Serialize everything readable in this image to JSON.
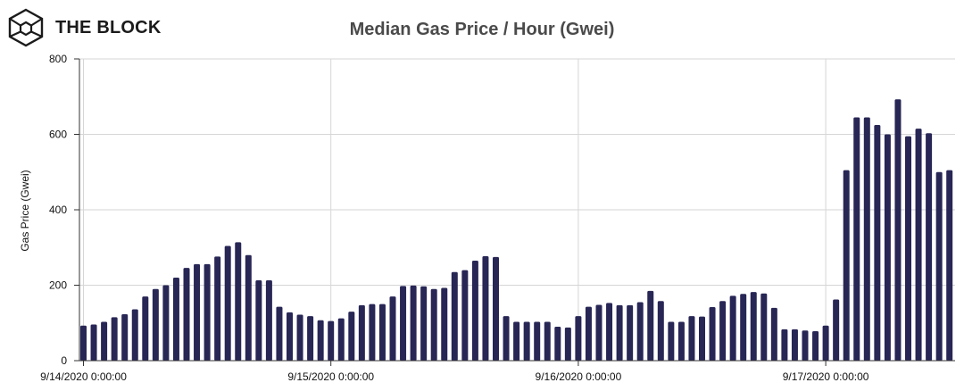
{
  "brand": {
    "name": "THE BLOCK",
    "icon": "block-cube-icon"
  },
  "chart_data": {
    "type": "bar",
    "title": "Median Gas Price / Hour (Gwei)",
    "xlabel": "",
    "ylabel": "Gas Price (Gwei)",
    "ylim": [
      0,
      800
    ],
    "yticks": [
      0,
      200,
      400,
      600,
      800
    ],
    "grid": true,
    "x_tick_labels": [
      {
        "label": "9/14/2020 0:00:00",
        "index": 0
      },
      {
        "label": "9/15/2020 0:00:00",
        "index": 24
      },
      {
        "label": "9/16/2020 0:00:00",
        "index": 48
      },
      {
        "label": "9/17/2020 0:00:00",
        "index": 72
      }
    ],
    "colors": {
      "bar": "#272655",
      "grid": "#d6d6d6",
      "axis": "#333333"
    },
    "series": [
      {
        "values": [
          93,
          96,
          103,
          115,
          123,
          136,
          170,
          190,
          200,
          220,
          246,
          256,
          256,
          276,
          304,
          314,
          280,
          213,
          213,
          143,
          128,
          122,
          118,
          107,
          105,
          112,
          130,
          147,
          150,
          150,
          170,
          198,
          199,
          197,
          190,
          193,
          235,
          240,
          265,
          277,
          275,
          118,
          103,
          103,
          103,
          103,
          90,
          88,
          118,
          143,
          148,
          153,
          147,
          147,
          155,
          185,
          158,
          103,
          103,
          118,
          117,
          142,
          158,
          172,
          177,
          182,
          178,
          140,
          83,
          83,
          80,
          78,
          93,
          162,
          505,
          645,
          645,
          625,
          600,
          693,
          595,
          615,
          603,
          500,
          505
        ]
      }
    ]
  }
}
